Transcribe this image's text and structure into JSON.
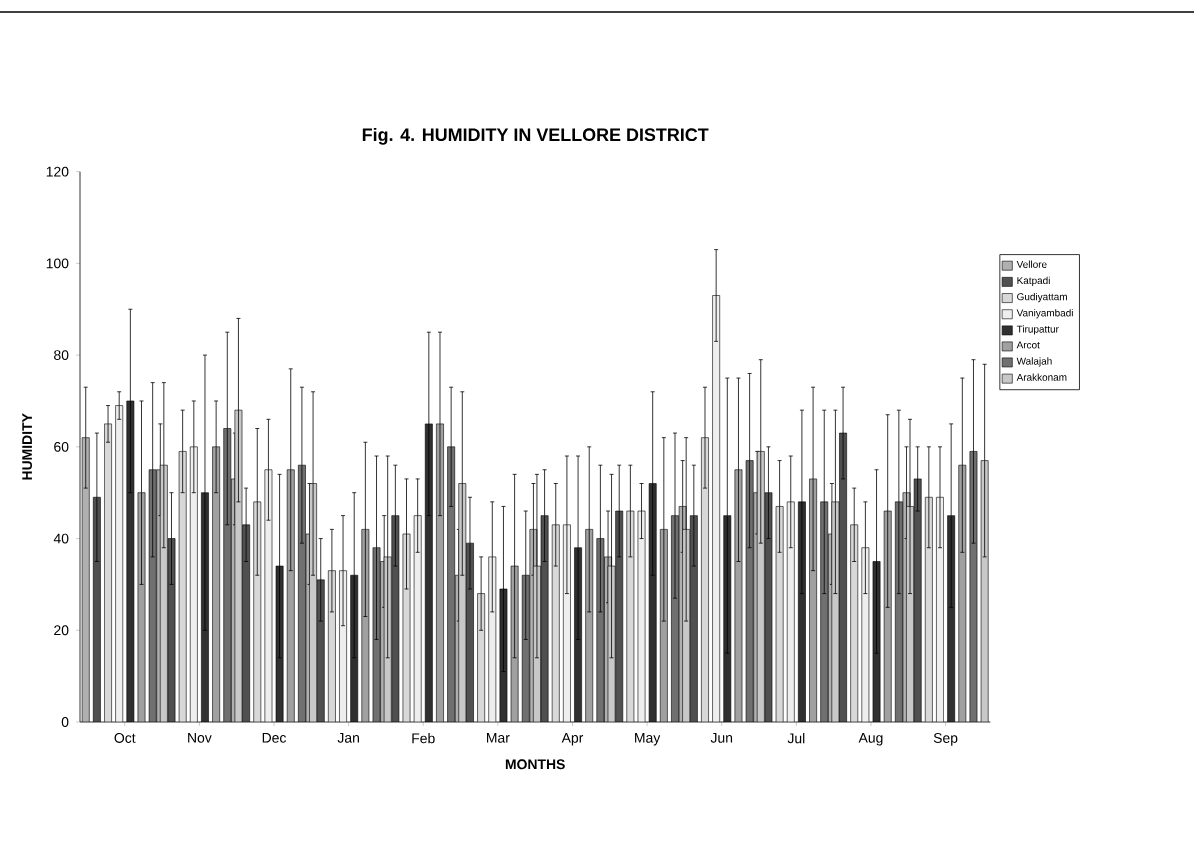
{
  "chart_data": {
    "type": "bar",
    "title": "Fig. 4. HUMIDITY IN VELLORE DISTRICT",
    "xlabel": "MONTHS",
    "ylabel": "HUMIDITY",
    "categories": [
      "Oct",
      "Nov",
      "Dec",
      "Jan",
      "Feb",
      "Mar",
      "Apr",
      "May",
      "Jun",
      "Jul",
      "Aug",
      "Sep"
    ],
    "series": [
      {
        "name": "Vellore",
        "color": "#b0b0b0",
        "values": [
          62,
          55,
          53,
          41,
          35,
          32,
          42,
          36,
          47,
          50,
          41,
          50
        ],
        "errors": [
          11,
          10,
          10,
          11,
          10,
          10,
          10,
          10,
          10,
          9,
          11,
          10
        ]
      },
      {
        "name": "Katpadi",
        "color": "#505050",
        "values": [
          49,
          40,
          43,
          31,
          45,
          39,
          45,
          46,
          45,
          50,
          63,
          53
        ],
        "errors": [
          14,
          10,
          8,
          9,
          11,
          10,
          10,
          10,
          11,
          10,
          10,
          7
        ]
      },
      {
        "name": "Gudiyattam",
        "color": "#d8d8d8",
        "values": [
          65,
          59,
          48,
          33,
          41,
          28,
          43,
          46,
          62,
          47,
          43,
          49
        ],
        "errors": [
          4,
          9,
          16,
          9,
          12,
          8,
          9,
          10,
          11,
          10,
          8,
          11
        ]
      },
      {
        "name": "Vaniyambadi",
        "color": "#eeeeee",
        "values": [
          69,
          60,
          55,
          33,
          45,
          36,
          43,
          46,
          93,
          48,
          38,
          49
        ],
        "errors": [
          3,
          10,
          11,
          12,
          8,
          12,
          15,
          6,
          10,
          10,
          10,
          11
        ]
      },
      {
        "name": "Tirupattur",
        "color": "#303030",
        "values": [
          70,
          50,
          34,
          32,
          65,
          29,
          38,
          52,
          45,
          48,
          35,
          45
        ],
        "errors": [
          20,
          30,
          20,
          18,
          20,
          18,
          20,
          20,
          30,
          20,
          20,
          20
        ]
      },
      {
        "name": "Arcot",
        "color": "#a0a0a0",
        "values": [
          50,
          60,
          55,
          42,
          65,
          34,
          42,
          42,
          55,
          53,
          46,
          56
        ],
        "errors": [
          20,
          10,
          22,
          19,
          20,
          20,
          18,
          20,
          20,
          20,
          21,
          19
        ]
      },
      {
        "name": "Walajah",
        "color": "#707070",
        "values": [
          55,
          64,
          56,
          38,
          60,
          32,
          40,
          45,
          57,
          48,
          48,
          59
        ],
        "errors": [
          19,
          21,
          17,
          20,
          13,
          14,
          16,
          18,
          19,
          20,
          20,
          20
        ]
      },
      {
        "name": "Arakkonam",
        "color": "#c8c8c8",
        "values": [
          56,
          68,
          52,
          36,
          52,
          34,
          34,
          42,
          59,
          48,
          47,
          57
        ],
        "errors": [
          18,
          20,
          20,
          22,
          20,
          20,
          20,
          20,
          20,
          20,
          19,
          21
        ]
      }
    ],
    "ylim": [
      0,
      120
    ],
    "yticks": [
      0,
      20,
      40,
      60,
      80,
      100,
      120
    ],
    "legend": "right"
  }
}
